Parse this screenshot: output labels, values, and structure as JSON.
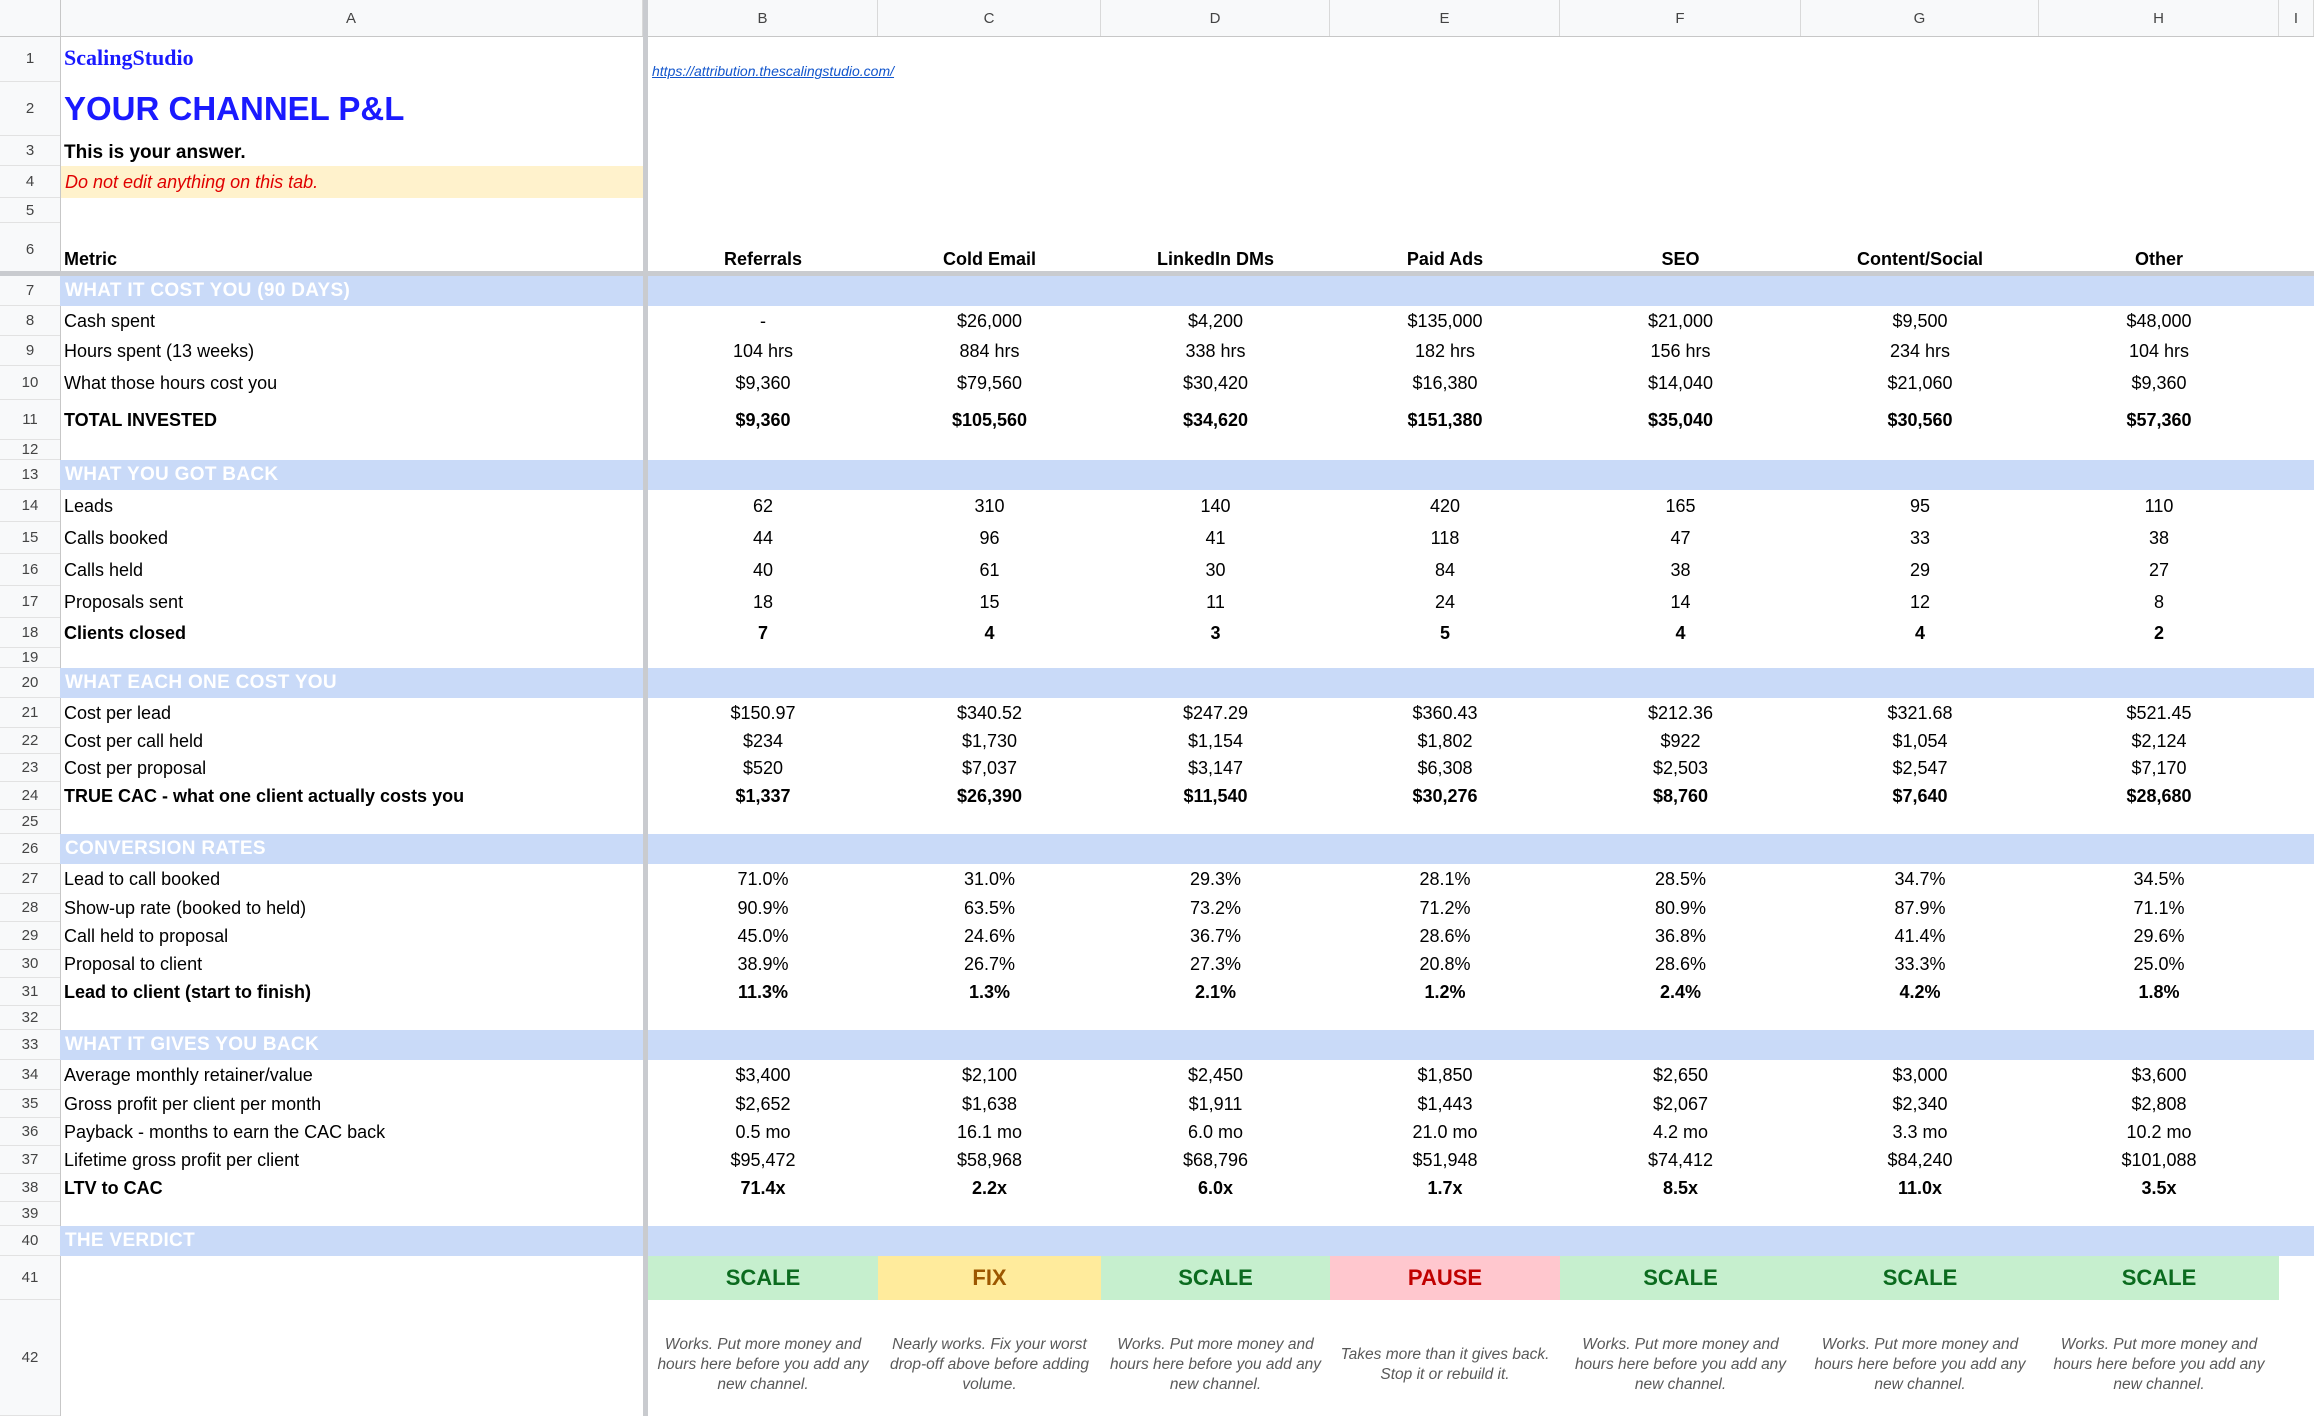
{
  "column_headers": [
    "A",
    "B",
    "C",
    "D",
    "E",
    "F",
    "G",
    "H",
    "I"
  ],
  "row_numbers": [
    "1",
    "2",
    "3",
    "4",
    "5",
    "6",
    "7",
    "8",
    "9",
    "10",
    "11",
    "12",
    "13",
    "14",
    "15",
    "16",
    "17",
    "18",
    "19",
    "20",
    "21",
    "22",
    "23",
    "24",
    "25",
    "26",
    "27",
    "28",
    "29",
    "30",
    "31",
    "32",
    "33",
    "34",
    "35",
    "36",
    "37",
    "38",
    "39",
    "40",
    "41",
    "42"
  ],
  "brand": "ScalingStudio",
  "link": "https://attribution.thescalingstudio.com/",
  "title": "YOUR CHANNEL P&L",
  "subtitle": "This is your answer.",
  "warning": "Do not edit anything on this tab.",
  "metric_header": "Metric",
  "channels": [
    "Referrals",
    "Cold Email",
    "LinkedIn DMs",
    "Paid Ads",
    "SEO",
    "Content/Social",
    "Other"
  ],
  "colors": {
    "band": "#c9daf8",
    "scale_bg": "#c6efce",
    "scale_fg": "#0b6b1f",
    "fix_bg": "#ffeb9c",
    "fix_fg": "#9c5700",
    "pause_bg": "#ffc7ce",
    "pause_fg": "#c00000",
    "title": "#1a1aff",
    "warning": "#e00000",
    "warning_bg": "#fff2cc"
  },
  "sections": {
    "cost": "WHAT IT COST YOU (90 DAYS)",
    "got_back": "WHAT YOU GOT BACK",
    "each_cost": "WHAT EACH ONE COST YOU",
    "conversion": "CONVERSION RATES",
    "gives_back": "WHAT IT GIVES YOU BACK",
    "verdict": "THE VERDICT"
  },
  "rows": {
    "r8": {
      "label": "Cash spent",
      "values": [
        "-",
        "$26,000",
        "$4,200",
        "$135,000",
        "$21,000",
        "$9,500",
        "$48,000"
      ]
    },
    "r9": {
      "label": "Hours spent (13 weeks)",
      "values": [
        "104 hrs",
        "884 hrs",
        "338 hrs",
        "182 hrs",
        "156 hrs",
        "234 hrs",
        "104 hrs"
      ]
    },
    "r10": {
      "label": "What those hours cost you",
      "values": [
        "$9,360",
        "$79,560",
        "$30,420",
        "$16,380",
        "$14,040",
        "$21,060",
        "$9,360"
      ]
    },
    "r11": {
      "label": "TOTAL INVESTED",
      "values": [
        "$9,360",
        "$105,560",
        "$34,620",
        "$151,380",
        "$35,040",
        "$30,560",
        "$57,360"
      ]
    },
    "r14": {
      "label": "Leads",
      "values": [
        "62",
        "310",
        "140",
        "420",
        "165",
        "95",
        "110"
      ]
    },
    "r15": {
      "label": "Calls booked",
      "values": [
        "44",
        "96",
        "41",
        "118",
        "47",
        "33",
        "38"
      ]
    },
    "r16": {
      "label": "Calls held",
      "values": [
        "40",
        "61",
        "30",
        "84",
        "38",
        "29",
        "27"
      ]
    },
    "r17": {
      "label": "Proposals sent",
      "values": [
        "18",
        "15",
        "11",
        "24",
        "14",
        "12",
        "8"
      ]
    },
    "r18": {
      "label": "Clients closed",
      "values": [
        "7",
        "4",
        "3",
        "5",
        "4",
        "4",
        "2"
      ]
    },
    "r21": {
      "label": "Cost per lead",
      "values": [
        "$150.97",
        "$340.52",
        "$247.29",
        "$360.43",
        "$212.36",
        "$321.68",
        "$521.45"
      ]
    },
    "r22": {
      "label": "Cost per call held",
      "values": [
        "$234",
        "$1,730",
        "$1,154",
        "$1,802",
        "$922",
        "$1,054",
        "$2,124"
      ]
    },
    "r23": {
      "label": "Cost per proposal",
      "values": [
        "$520",
        "$7,037",
        "$3,147",
        "$6,308",
        "$2,503",
        "$2,547",
        "$7,170"
      ]
    },
    "r24": {
      "label": "TRUE CAC - what one client actually costs you",
      "values": [
        "$1,337",
        "$26,390",
        "$11,540",
        "$30,276",
        "$8,760",
        "$7,640",
        "$28,680"
      ]
    },
    "r27": {
      "label": "Lead to call booked",
      "values": [
        "71.0%",
        "31.0%",
        "29.3%",
        "28.1%",
        "28.5%",
        "34.7%",
        "34.5%"
      ]
    },
    "r28": {
      "label": "Show-up rate (booked to held)",
      "values": [
        "90.9%",
        "63.5%",
        "73.2%",
        "71.2%",
        "80.9%",
        "87.9%",
        "71.1%"
      ]
    },
    "r29": {
      "label": "Call held to proposal",
      "values": [
        "45.0%",
        "24.6%",
        "36.7%",
        "28.6%",
        "36.8%",
        "41.4%",
        "29.6%"
      ]
    },
    "r30": {
      "label": "Proposal to client",
      "values": [
        "38.9%",
        "26.7%",
        "27.3%",
        "20.8%",
        "28.6%",
        "33.3%",
        "25.0%"
      ]
    },
    "r31": {
      "label": "Lead to client (start to finish)",
      "values": [
        "11.3%",
        "1.3%",
        "2.1%",
        "1.2%",
        "2.4%",
        "4.2%",
        "1.8%"
      ]
    },
    "r34": {
      "label": "Average monthly retainer/value",
      "values": [
        "$3,400",
        "$2,100",
        "$2,450",
        "$1,850",
        "$2,650",
        "$3,000",
        "$3,600"
      ]
    },
    "r35": {
      "label": "Gross profit per client per month",
      "values": [
        "$2,652",
        "$1,638",
        "$1,911",
        "$1,443",
        "$2,067",
        "$2,340",
        "$2,808"
      ]
    },
    "r36": {
      "label": "Payback - months to earn the CAC back",
      "values": [
        "0.5 mo",
        "16.1 mo",
        "6.0 mo",
        "21.0 mo",
        "4.2 mo",
        "3.3 mo",
        "10.2 mo"
      ]
    },
    "r37": {
      "label": "Lifetime gross profit per client",
      "values": [
        "$95,472",
        "$58,968",
        "$68,796",
        "$51,948",
        "$74,412",
        "$84,240",
        "$101,088"
      ]
    },
    "r38": {
      "label": "LTV to CAC",
      "values": [
        "71.4x",
        "2.2x",
        "6.0x",
        "1.7x",
        "8.5x",
        "11.0x",
        "3.5x"
      ]
    }
  },
  "verdicts": [
    "SCALE",
    "FIX",
    "SCALE",
    "PAUSE",
    "SCALE",
    "SCALE",
    "SCALE"
  ],
  "verdict_notes": [
    "Works. Put more money and hours here before you add any new channel.",
    "Nearly works. Fix your worst drop-off above before adding volume.",
    "Works. Put more money and hours here before you add any new channel.",
    "Takes more than it gives back. Stop it or rebuild it.",
    "Works. Put more money and hours here before you add any new channel.",
    "Works. Put more money and hours here before you add any new channel.",
    "Works. Put more money and hours here before you add any new channel."
  ]
}
